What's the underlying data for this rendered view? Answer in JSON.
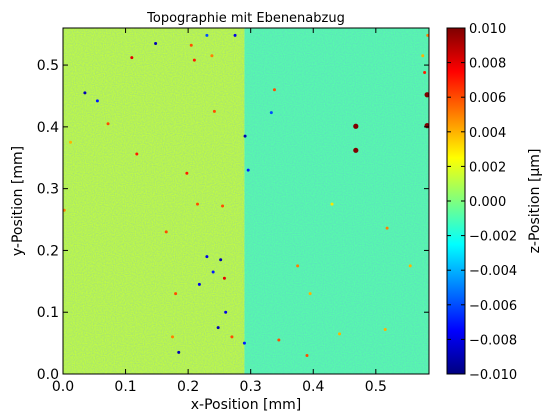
{
  "chart_data": {
    "type": "heatmap",
    "title": "Topographie mit Ebenenabzug",
    "xlabel": "x-Position [mm]",
    "ylabel": "y-Position [mm]",
    "colorbar_label": "z-Position [µm]",
    "xlim": [
      0.0,
      0.585
    ],
    "ylim": [
      0.0,
      0.56
    ],
    "xticks": [
      0.0,
      0.1,
      0.2,
      0.3,
      0.4,
      0.5
    ],
    "xtick_labels": [
      "0.0",
      "0.1",
      "0.2",
      "0.3",
      "0.4",
      "0.5"
    ],
    "yticks": [
      0.0,
      0.1,
      0.2,
      0.3,
      0.4,
      0.5
    ],
    "ytick_labels": [
      "0.0",
      "0.1",
      "0.2",
      "0.3",
      "0.4",
      "0.5"
    ],
    "colorbar_range": [
      -0.01,
      0.01
    ],
    "colorbar_ticks": [
      0.01,
      0.008,
      0.006,
      0.004,
      0.002,
      0.0,
      -0.002,
      -0.004,
      -0.006,
      -0.008,
      -0.01
    ],
    "colorbar_tick_labels": [
      "0.010",
      "0.008",
      "0.006",
      "0.004",
      "0.002",
      "0.000",
      "−0.002",
      "−0.004",
      "−0.006",
      "−0.008",
      "−0.010"
    ],
    "colormap": "jet",
    "colormap_stops": [
      "#00007f",
      "#0000ff",
      "#007fff",
      "#00ffff",
      "#7fff7f",
      "#ffff00",
      "#ff7f00",
      "#ff0000",
      "#7f0000"
    ],
    "regions": [
      {
        "x": [
          0.0,
          0.29
        ],
        "z": 0.0013
      },
      {
        "x": [
          0.29,
          0.585
        ],
        "z": -0.0008
      }
    ],
    "grid": false,
    "outliers": [
      {
        "x": 0.468,
        "y": 0.401,
        "z": 0.01
      },
      {
        "x": 0.468,
        "y": 0.362,
        "z": 0.01
      },
      {
        "x": 0.582,
        "y": 0.452,
        "z": 0.01
      },
      {
        "x": 0.582,
        "y": 0.402,
        "z": 0.01
      },
      {
        "x": 0.578,
        "y": 0.488,
        "z": 0.007
      },
      {
        "x": 0.575,
        "y": 0.515,
        "z": 0.004
      },
      {
        "x": 0.583,
        "y": 0.548,
        "z": 0.005
      },
      {
        "x": 0.035,
        "y": 0.455,
        "z": -0.009
      },
      {
        "x": 0.055,
        "y": 0.442,
        "z": -0.007
      },
      {
        "x": 0.148,
        "y": 0.535,
        "z": -0.009
      },
      {
        "x": 0.11,
        "y": 0.512,
        "z": 0.008
      },
      {
        "x": 0.072,
        "y": 0.405,
        "z": 0.006
      },
      {
        "x": 0.118,
        "y": 0.356,
        "z": 0.007
      },
      {
        "x": 0.205,
        "y": 0.532,
        "z": 0.006
      },
      {
        "x": 0.21,
        "y": 0.508,
        "z": 0.007
      },
      {
        "x": 0.238,
        "y": 0.515,
        "z": 0.005
      },
      {
        "x": 0.23,
        "y": 0.548,
        "z": -0.006
      },
      {
        "x": 0.291,
        "y": 0.385,
        "z": -0.009
      },
      {
        "x": 0.296,
        "y": 0.33,
        "z": -0.007
      },
      {
        "x": 0.275,
        "y": 0.548,
        "z": -0.008
      },
      {
        "x": 0.333,
        "y": 0.423,
        "z": -0.006
      },
      {
        "x": 0.338,
        "y": 0.46,
        "z": 0.006
      },
      {
        "x": 0.242,
        "y": 0.425,
        "z": 0.006
      },
      {
        "x": 0.198,
        "y": 0.325,
        "z": 0.007
      },
      {
        "x": 0.215,
        "y": 0.275,
        "z": 0.006
      },
      {
        "x": 0.255,
        "y": 0.272,
        "z": 0.006
      },
      {
        "x": 0.23,
        "y": 0.19,
        "z": -0.008
      },
      {
        "x": 0.24,
        "y": 0.165,
        "z": -0.007
      },
      {
        "x": 0.252,
        "y": 0.185,
        "z": -0.009
      },
      {
        "x": 0.258,
        "y": 0.155,
        "z": 0.008
      },
      {
        "x": 0.218,
        "y": 0.145,
        "z": -0.008
      },
      {
        "x": 0.26,
        "y": 0.1,
        "z": -0.008
      },
      {
        "x": 0.248,
        "y": 0.075,
        "z": -0.009
      },
      {
        "x": 0.27,
        "y": 0.06,
        "z": 0.006
      },
      {
        "x": 0.29,
        "y": 0.05,
        "z": -0.007
      },
      {
        "x": 0.185,
        "y": 0.035,
        "z": -0.009
      },
      {
        "x": 0.375,
        "y": 0.175,
        "z": 0.005
      },
      {
        "x": 0.395,
        "y": 0.13,
        "z": 0.004
      },
      {
        "x": 0.345,
        "y": 0.055,
        "z": 0.006
      },
      {
        "x": 0.39,
        "y": 0.03,
        "z": 0.006
      },
      {
        "x": 0.442,
        "y": 0.065,
        "z": 0.004
      },
      {
        "x": 0.518,
        "y": 0.236,
        "z": 0.005
      },
      {
        "x": 0.555,
        "y": 0.175,
        "z": 0.004
      },
      {
        "x": 0.515,
        "y": 0.072,
        "z": 0.004
      },
      {
        "x": 0.43,
        "y": 0.275,
        "z": 0.003
      },
      {
        "x": 0.002,
        "y": 0.265,
        "z": 0.005
      },
      {
        "x": 0.012,
        "y": 0.375,
        "z": 0.004
      },
      {
        "x": 0.165,
        "y": 0.23,
        "z": 0.006
      },
      {
        "x": 0.175,
        "y": 0.06,
        "z": 0.005
      },
      {
        "x": 0.18,
        "y": 0.13,
        "z": 0.006
      }
    ]
  }
}
